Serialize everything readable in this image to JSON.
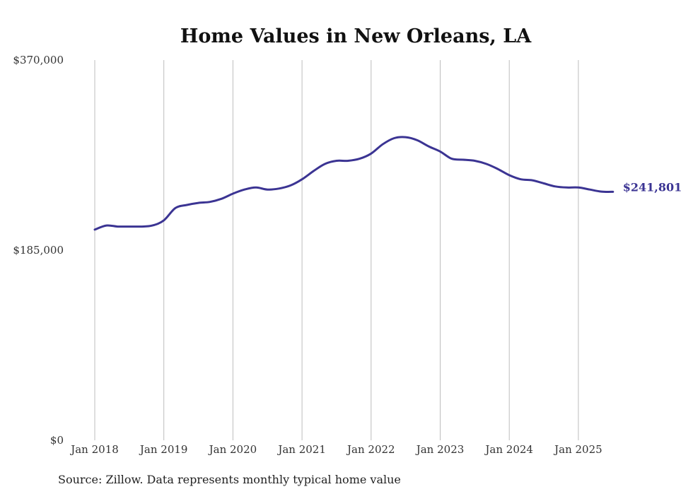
{
  "chart_data": {
    "type": "line",
    "title": "Home Values in New Orleans, LA",
    "xlabel": "",
    "ylabel": "",
    "ylim": [
      0,
      370000
    ],
    "y_ticks": [
      "$370,000",
      "$185,000",
      "$0"
    ],
    "y_tick_values": [
      370000,
      185000,
      0
    ],
    "x_ticks": [
      "Jan 2018",
      "Jan 2019",
      "Jan 2020",
      "Jan 2021",
      "Jan 2022",
      "Jan 2023",
      "Jan 2024",
      "Jan 2025"
    ],
    "x_tick_dates": [
      "2018-01",
      "2019-01",
      "2020-01",
      "2021-01",
      "2022-01",
      "2023-01",
      "2024-01",
      "2025-01"
    ],
    "grid": "vertical",
    "color": "#3b3493",
    "series": [
      {
        "points": [
          [
            "2018-01",
            205000
          ],
          [
            "2018-03",
            209000
          ],
          [
            "2018-05",
            208000
          ],
          [
            "2018-07",
            208000
          ],
          [
            "2018-09",
            208000
          ],
          [
            "2018-11",
            209000
          ],
          [
            "2019-01",
            214000
          ],
          [
            "2019-03",
            226000
          ],
          [
            "2019-05",
            229000
          ],
          [
            "2019-07",
            231000
          ],
          [
            "2019-09",
            232000
          ],
          [
            "2019-11",
            235000
          ],
          [
            "2020-01",
            240000
          ],
          [
            "2020-03",
            244000
          ],
          [
            "2020-05",
            246000
          ],
          [
            "2020-07",
            244000
          ],
          [
            "2020-09",
            245000
          ],
          [
            "2020-11",
            248000
          ],
          [
            "2021-01",
            254000
          ],
          [
            "2021-03",
            262000
          ],
          [
            "2021-05",
            269000
          ],
          [
            "2021-07",
            272000
          ],
          [
            "2021-09",
            272000
          ],
          [
            "2021-11",
            274000
          ],
          [
            "2022-01",
            279000
          ],
          [
            "2022-03",
            288000
          ],
          [
            "2022-05",
            294000
          ],
          [
            "2022-07",
            295000
          ],
          [
            "2022-09",
            292000
          ],
          [
            "2022-11",
            286000
          ],
          [
            "2023-01",
            281000
          ],
          [
            "2023-03",
            274000
          ],
          [
            "2023-05",
            273000
          ],
          [
            "2023-07",
            272000
          ],
          [
            "2023-09",
            269000
          ],
          [
            "2023-11",
            264000
          ],
          [
            "2024-01",
            258000
          ],
          [
            "2024-03",
            254000
          ],
          [
            "2024-05",
            253000
          ],
          [
            "2024-07",
            250000
          ],
          [
            "2024-09",
            247000
          ],
          [
            "2024-11",
            246000
          ],
          [
            "2025-01",
            246000
          ],
          [
            "2025-03",
            244000
          ],
          [
            "2025-05",
            242000
          ],
          [
            "2025-07",
            241801
          ]
        ]
      }
    ],
    "end_label": "$241,801",
    "source": "Source: Zillow. Data represents monthly typical home value"
  }
}
